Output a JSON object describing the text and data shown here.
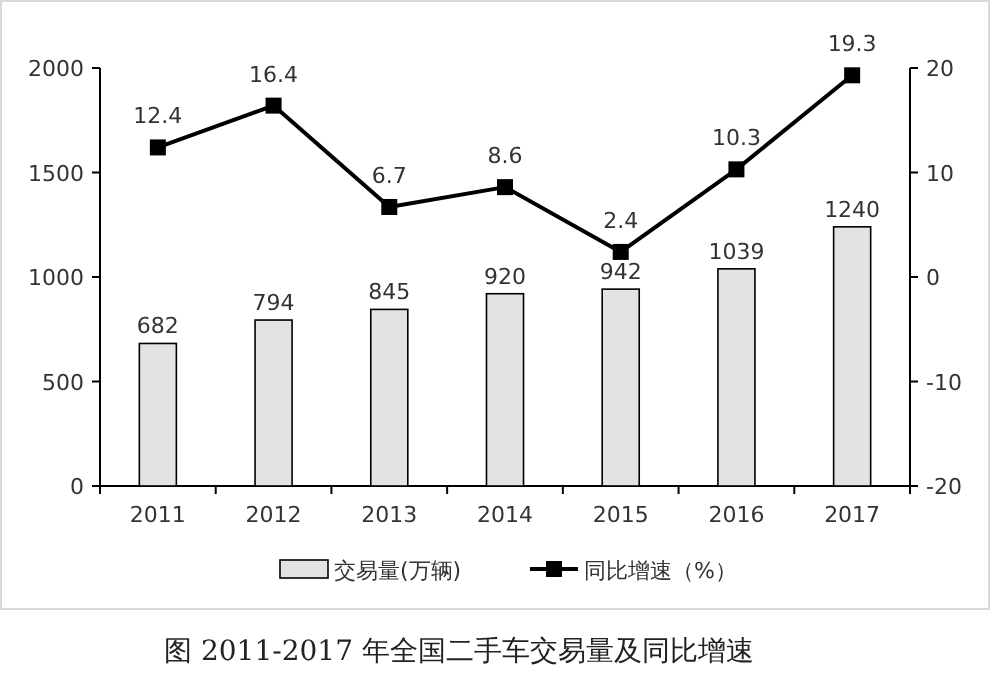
{
  "chart_data": {
    "type": "bar",
    "categories": [
      "2011",
      "2012",
      "2013",
      "2014",
      "2015",
      "2016",
      "2017"
    ],
    "series": [
      {
        "name": "交易量(万辆)",
        "color": "#e3e3e3",
        "values": [
          682,
          794,
          845,
          920,
          942,
          1039,
          1240
        ]
      },
      {
        "name": "同比增速（%）",
        "type": "line",
        "axis": "y2",
        "color": "#000000",
        "marker": "square",
        "values": [
          12.4,
          16.4,
          6.7,
          8.6,
          2.4,
          10.3,
          19.3
        ]
      }
    ],
    "ylim": [
      0,
      2000
    ],
    "yticks": [
      0,
      500,
      1000,
      1500,
      2000
    ],
    "y2lim": [
      -20,
      20
    ],
    "y2ticks": [
      -20,
      -10,
      0,
      10,
      20
    ],
    "data_labels": true,
    "legend": "bottom",
    "grid": false,
    "annotations": [
      "图  2011-2017 年全国二手车交易量及同比增速"
    ]
  }
}
